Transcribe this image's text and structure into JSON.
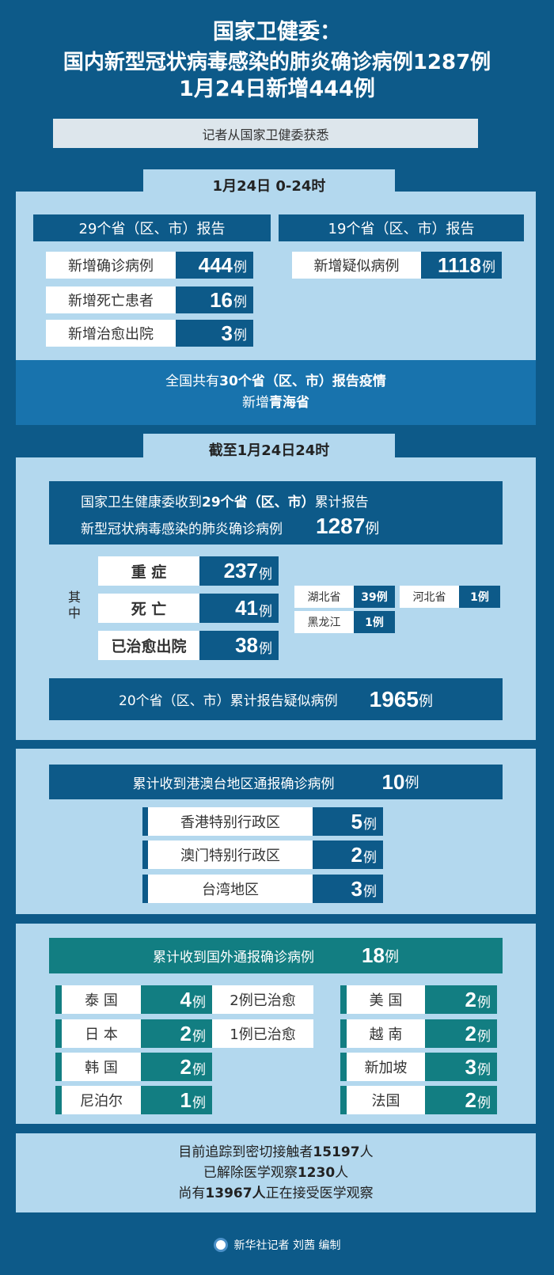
{
  "colors": {
    "dark_blue": "#0d5a89",
    "light_blue": "#b3d8ee",
    "band_blue": "#1873ad",
    "teal": "#127e82"
  },
  "title": {
    "line1": "国家卫健委：",
    "line2": "国内新型冠状病毒感染的肺炎确诊病例1287例",
    "line3": "1月24日新增444例"
  },
  "subtitle": "记者从国家卫健委获悉",
  "section1": {
    "tab": "1月24日 0-24时",
    "left_header": "29个省（区、市）报告",
    "right_header": "19个省（区、市）报告",
    "rows": [
      {
        "label": "新增确诊病例",
        "value": "444",
        "unit": "例"
      },
      {
        "label": "新增死亡患者",
        "value": "16",
        "unit": "例"
      },
      {
        "label": "新增治愈出院",
        "value": "3",
        "unit": "例"
      }
    ],
    "right_rows": [
      {
        "label": "新增疑似病例",
        "value": "1118",
        "unit": "例"
      }
    ],
    "band_line1_a": "全国共有",
    "band_line1_b": "30个省（区、市）报告疫情",
    "band_line2_a": "新增",
    "band_line2_b": "青海省"
  },
  "section2": {
    "tab": "截至1月24日24时",
    "summary_a": "国家卫生健康委收到",
    "summary_b": "29个省（区、市）",
    "summary_c": "累计报告",
    "summary_line2": "新型冠状病毒感染的肺炎确诊病例",
    "summary_value": "1287",
    "unit": "例",
    "among": "其中",
    "rows": [
      {
        "label": "重 症",
        "value": "237",
        "unit": "例"
      },
      {
        "label": "死 亡",
        "value": "41",
        "unit": "例"
      },
      {
        "label": "已治愈出院",
        "value": "38",
        "unit": "例"
      }
    ],
    "death_breakdown": [
      {
        "label": "湖北省",
        "value": "39例"
      },
      {
        "label": "河北省",
        "value": "1例"
      },
      {
        "label": "黑龙江",
        "value": "1例"
      }
    ],
    "suspected_label": "20个省（区、市）累计报告疑似病例",
    "suspected_value": "1965",
    "suspected_unit": "例"
  },
  "section3": {
    "header": "累计收到港澳台地区通报确诊病例",
    "header_value": "10",
    "unit": "例",
    "rows": [
      {
        "label": "香港特别行政区",
        "value": "5"
      },
      {
        "label": "澳门特别行政区",
        "value": "2"
      },
      {
        "label": "台湾地区",
        "value": "3"
      }
    ]
  },
  "section4": {
    "header": "累计收到国外通报确诊病例",
    "header_value": "18",
    "unit": "例",
    "left": [
      {
        "label": "泰 国",
        "value": "4",
        "note": "2例已治愈"
      },
      {
        "label": "日 本",
        "value": "2",
        "note": "1例已治愈"
      },
      {
        "label": "韩 国",
        "value": "2"
      },
      {
        "label": "尼泊尔",
        "value": "1"
      }
    ],
    "right": [
      {
        "label": "美 国",
        "value": "2"
      },
      {
        "label": "越 南",
        "value": "2"
      },
      {
        "label": "新加坡",
        "value": "3"
      },
      {
        "label": "法国",
        "value": "2"
      }
    ]
  },
  "section5": {
    "l1a": "目前追踪到密切接触者",
    "l1b": "15197",
    "l1c": "人",
    "l2a": "已解除医学观察",
    "l2b": "1230",
    "l2c": "人",
    "l3a": "尚有",
    "l3b": "13967人",
    "l3c": "正在接受医学观察"
  },
  "credit": "新华社记者 刘茜 编制"
}
